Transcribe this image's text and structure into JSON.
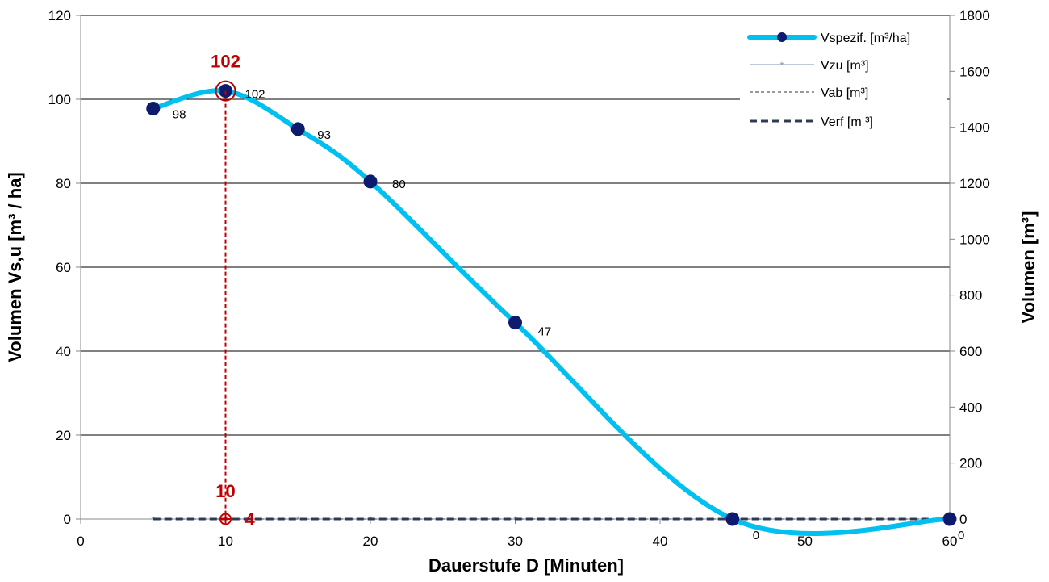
{
  "chart_data": {
    "type": "line",
    "xlabel": "Dauerstufe D [Minuten]",
    "ylabel": "Volumen Vs,u [m³ / ha]",
    "y2label": "Volumen [m³]",
    "xlim": [
      0,
      60
    ],
    "ylim": [
      0,
      120
    ],
    "y2lim": [
      0,
      1800
    ],
    "xticks": [
      "0",
      "10",
      "20",
      "30",
      "40",
      "50",
      "60"
    ],
    "yticks": [
      "0",
      "20",
      "40",
      "60",
      "80",
      "100",
      "120"
    ],
    "y2ticks": [
      "0",
      "200",
      "400",
      "600",
      "800",
      "1000",
      "1200",
      "1400",
      "1600",
      "1800"
    ],
    "grid": true,
    "legend_position": "top-right",
    "series": [
      {
        "name": "Vspezif. [m³/ha]",
        "axis": "left",
        "color": "#00c0f0",
        "marker_color": "#0d1a6e",
        "x": [
          5,
          10,
          15,
          20,
          30,
          45,
          60
        ],
        "y": [
          97.8,
          102,
          92.9,
          80.4,
          46.8,
          0,
          0
        ],
        "labels": [
          "98",
          "102",
          "93",
          "80",
          "47",
          "0",
          "0"
        ]
      },
      {
        "name": "Vzu [m³]",
        "axis": "right",
        "color": "#7f95b5",
        "x": [
          5,
          10,
          15,
          20,
          30,
          45,
          60
        ],
        "y": [
          0,
          0,
          0,
          0,
          0,
          0,
          0
        ]
      },
      {
        "name": "Vab [m³]",
        "axis": "right",
        "color": "#333333",
        "x": [
          5,
          10,
          15,
          20,
          30,
          45,
          60
        ],
        "y": [
          0,
          0,
          0,
          0,
          0,
          0,
          0
        ]
      },
      {
        "name": "Verf [m ³]",
        "axis": "right",
        "color": "#2f3b55",
        "x": [
          5,
          10,
          15,
          20,
          30,
          45,
          60
        ],
        "y": [
          0,
          0,
          0,
          0,
          0,
          0,
          0
        ]
      }
    ],
    "annotations": {
      "color": "#c00000",
      "peak": {
        "x": 10,
        "y": 102,
        "label": "102"
      },
      "duration": {
        "x": 10,
        "label": "10"
      },
      "volume": {
        "label": "4"
      }
    }
  }
}
